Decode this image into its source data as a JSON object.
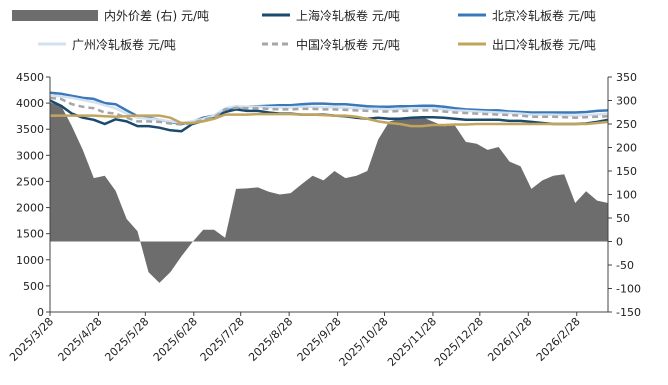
{
  "chart_data": {
    "type": "line",
    "title": "",
    "xlabel": "",
    "ylabel": "",
    "y2label": "",
    "ylim": [
      0,
      4500
    ],
    "y2lim": [
      -150,
      350
    ],
    "yticks": [
      0,
      500,
      1000,
      1500,
      2000,
      2500,
      3000,
      3500,
      4000,
      4500
    ],
    "y2ticks": [
      -150,
      -100,
      -50,
      0,
      50,
      100,
      150,
      200,
      250,
      300,
      350
    ],
    "xticks": [
      "2025/3/28",
      "2025/4/28",
      "2025/5/28",
      "2025/6/28",
      "2025/7/28",
      "2025/8/28",
      "2025/9/28",
      "2025/10/28",
      "2025/11/28",
      "2025/12/28",
      "2026/1/28",
      "2026/2/28"
    ],
    "x": [
      "2025/3/28",
      "2025/4/4",
      "2025/4/11",
      "2025/4/18",
      "2025/4/25",
      "2025/5/2",
      "2025/5/9",
      "2025/5/16",
      "2025/5/23",
      "2025/5/30",
      "2025/6/6",
      "2025/6/13",
      "2025/6/20",
      "2025/6/27",
      "2025/7/4",
      "2025/7/11",
      "2025/7/18",
      "2025/7/25",
      "2025/8/1",
      "2025/8/8",
      "2025/8/15",
      "2025/8/22",
      "2025/8/29",
      "2025/9/5",
      "2025/9/12",
      "2025/9/19",
      "2025/9/26",
      "2025/10/3",
      "2025/10/10",
      "2025/10/17",
      "2025/10/24",
      "2025/10/31",
      "2025/11/7",
      "2025/11/14",
      "2025/11/21",
      "2025/11/28",
      "2025/12/5",
      "2025/12/12",
      "2025/12/19",
      "2025/12/26",
      "2026/1/2",
      "2026/1/9",
      "2026/1/16",
      "2026/1/23",
      "2026/1/30",
      "2026/2/6",
      "2026/2/13",
      "2026/2/20",
      "2026/2/27",
      "2026/3/6",
      "2026/3/13",
      "2026/3/20"
    ],
    "legend_placement": "top",
    "series": [
      {
        "name": "内外价差 (右) 元/吨",
        "type": "area",
        "axis": "right",
        "color": "#6d6d6d",
        "values": [
          295,
          290,
          245,
          195,
          135,
          140,
          108,
          48,
          22,
          -65,
          -88,
          -65,
          -32,
          -2,
          25,
          25,
          8,
          112,
          113,
          115,
          106,
          100,
          103,
          122,
          140,
          130,
          150,
          135,
          140,
          150,
          217,
          255,
          262,
          265,
          265,
          255,
          245,
          247,
          212,
          208,
          195,
          201,
          170,
          160,
          112,
          130,
          140,
          143,
          82,
          107,
          87,
          82
        ]
      },
      {
        "name": "上海冷轧板卷 元/吨",
        "type": "line",
        "axis": "left",
        "color": "#1a4a6e",
        "dash": "",
        "values": [
          4050,
          3950,
          3800,
          3720,
          3680,
          3600,
          3690,
          3650,
          3560,
          3560,
          3530,
          3480,
          3460,
          3600,
          3660,
          3720,
          3830,
          3880,
          3850,
          3850,
          3820,
          3800,
          3800,
          3780,
          3780,
          3780,
          3760,
          3750,
          3720,
          3700,
          3720,
          3700,
          3700,
          3720,
          3730,
          3730,
          3720,
          3700,
          3680,
          3680,
          3680,
          3680,
          3660,
          3660,
          3640,
          3620,
          3600,
          3600,
          3600,
          3610,
          3640,
          3680
        ]
      },
      {
        "name": "北京冷轧板卷 元/吨",
        "type": "line",
        "axis": "left",
        "color": "#3a78b8",
        "dash": "",
        "values": [
          4200,
          4180,
          4140,
          4100,
          4080,
          4000,
          3980,
          3860,
          3750,
          3720,
          3680,
          3640,
          3600,
          3640,
          3720,
          3760,
          3880,
          3920,
          3930,
          3940,
          3950,
          3960,
          3960,
          3980,
          3990,
          3990,
          3980,
          3980,
          3960,
          3940,
          3930,
          3930,
          3940,
          3940,
          3950,
          3950,
          3930,
          3900,
          3880,
          3870,
          3860,
          3860,
          3840,
          3830,
          3820,
          3820,
          3820,
          3820,
          3820,
          3830,
          3850,
          3860
        ]
      },
      {
        "name": "广州冷轧板卷 元/吨",
        "type": "line",
        "axis": "left",
        "color": "#d2e2f2",
        "dash": "",
        "values": [
          4150,
          4130,
          4100,
          4060,
          4020,
          3960,
          3900,
          3800,
          3720,
          3700,
          3680,
          3650,
          3620,
          3650,
          3700,
          3760,
          3900,
          3940,
          3930,
          3930,
          3920,
          3920,
          3920,
          3930,
          3930,
          3920,
          3920,
          3910,
          3900,
          3890,
          3890,
          3880,
          3890,
          3900,
          3900,
          3900,
          3880,
          3860,
          3850,
          3840,
          3830,
          3820,
          3810,
          3800,
          3780,
          3780,
          3780,
          3770,
          3760,
          3770,
          3780,
          3800
        ]
      },
      {
        "name": "中国冷轧板卷 元/吨",
        "type": "line",
        "axis": "left",
        "color": "#a6a6a6",
        "dash": "6,4",
        "values": [
          4100,
          4080,
          3980,
          3930,
          3900,
          3820,
          3800,
          3720,
          3650,
          3650,
          3640,
          3610,
          3590,
          3620,
          3680,
          3730,
          3880,
          3910,
          3900,
          3900,
          3890,
          3880,
          3880,
          3890,
          3890,
          3880,
          3880,
          3870,
          3860,
          3850,
          3840,
          3840,
          3850,
          3850,
          3860,
          3860,
          3840,
          3820,
          3810,
          3800,
          3790,
          3780,
          3770,
          3760,
          3740,
          3740,
          3740,
          3730,
          3720,
          3730,
          3740,
          3750
        ]
      },
      {
        "name": "出口冷轧板卷 元/吨",
        "type": "line",
        "axis": "left",
        "color": "#c2a55d",
        "dash": "",
        "values": [
          3760,
          3760,
          3760,
          3760,
          3760,
          3750,
          3740,
          3750,
          3760,
          3760,
          3760,
          3720,
          3620,
          3620,
          3650,
          3700,
          3780,
          3780,
          3780,
          3790,
          3790,
          3790,
          3790,
          3780,
          3780,
          3770,
          3760,
          3760,
          3740,
          3700,
          3650,
          3620,
          3600,
          3560,
          3560,
          3580,
          3580,
          3590,
          3590,
          3600,
          3600,
          3600,
          3600,
          3600,
          3600,
          3600,
          3600,
          3600,
          3600,
          3600,
          3620,
          3640
        ]
      }
    ]
  }
}
